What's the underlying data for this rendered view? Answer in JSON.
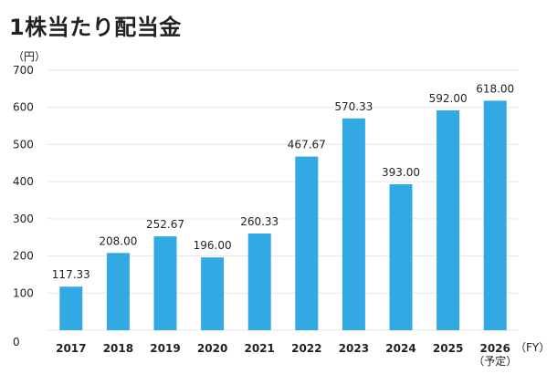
{
  "chart_data": {
    "type": "bar",
    "title": "1株当たり配当金",
    "y_unit": "（円）",
    "x_unit": "（FY）",
    "categories": [
      "2017",
      "2018",
      "2019",
      "2020",
      "2021",
      "2022",
      "2023",
      "2024",
      "2025",
      "2026"
    ],
    "category_notes": [
      "",
      "",
      "",
      "",
      "",
      "",
      "",
      "",
      "",
      "（予定）"
    ],
    "values": [
      117.33,
      208.0,
      252.67,
      196.0,
      260.33,
      467.67,
      570.33,
      393.0,
      592.0,
      618.0
    ],
    "value_labels": [
      "117.33",
      "208.00",
      "252.67",
      "196.00",
      "260.33",
      "467.67",
      "570.33",
      "393.00",
      "592.00",
      "618.00"
    ],
    "ylim": [
      0,
      700
    ],
    "yticks": [
      0,
      100,
      200,
      300,
      400,
      500,
      600,
      700
    ],
    "grid": true,
    "bar_color": "#33a9e3"
  }
}
